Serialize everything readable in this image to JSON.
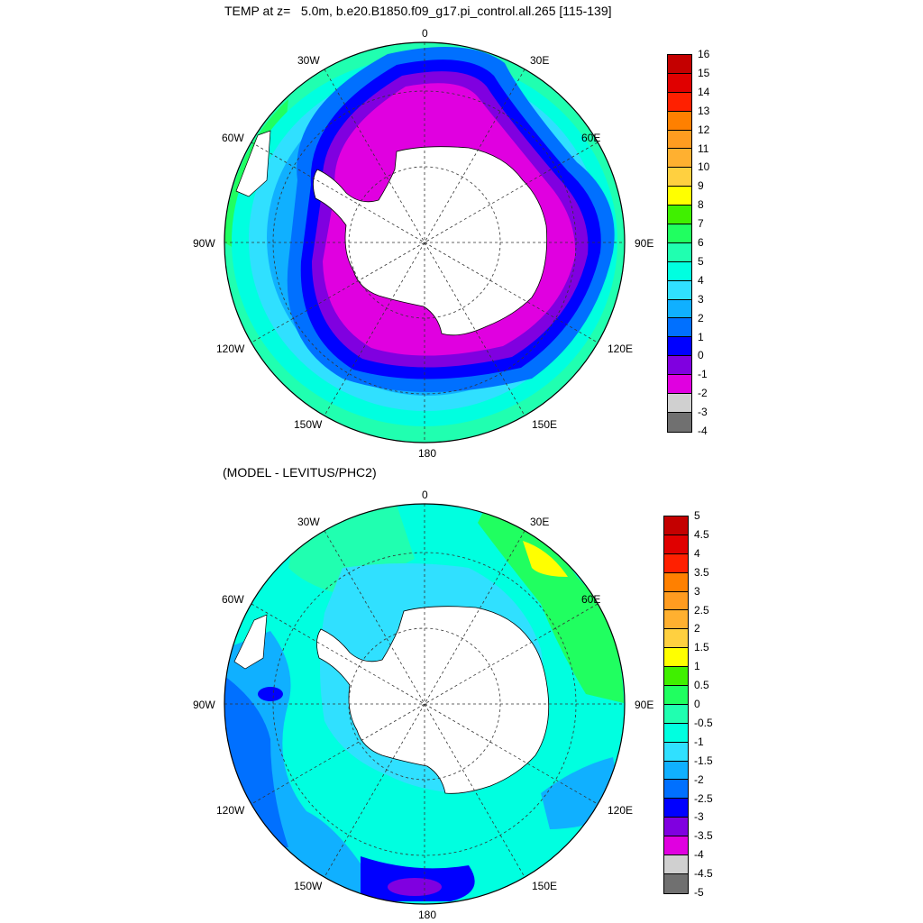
{
  "maps": [
    {
      "title": "TEMP at z=   5.0m, b.e20.B1850.f09_g17.pi_control.all.265 [115-139]",
      "lon_labels": {
        "n": "0",
        "ne": "30E",
        "ene": "60E",
        "e": "90E",
        "ese": "120E",
        "sse": "150E",
        "s": "180",
        "ssw": "150W",
        "wsw": "120W",
        "w": "90W",
        "wnw": "60W",
        "nnw": "30W"
      },
      "colorbar": {
        "labels": [
          "16",
          "15",
          "14",
          "13",
          "12",
          "11",
          "10",
          "9",
          "8",
          "7",
          "6",
          "5",
          "4",
          "3",
          "2",
          "1",
          "0",
          "-1",
          "-2",
          "-3",
          "-4"
        ],
        "colors": [
          "#c40000",
          "#e00000",
          "#ff2000",
          "#ff8000",
          "#ff9c20",
          "#ffb030",
          "#ffd040",
          "#ffff00",
          "#40f000",
          "#20ff60",
          "#20ffb0",
          "#00ffe0",
          "#30e0ff",
          "#10b0ff",
          "#0070ff",
          "#0000ff",
          "#8000e0",
          "#e000e0",
          "#d0d0d0",
          "#707070"
        ]
      }
    },
    {
      "title": "(MODEL - LEVITUS/PHC2)",
      "lon_labels": {
        "n": "0",
        "ne": "30E",
        "ene": "60E",
        "e": "90E",
        "ese": "120E",
        "sse": "150E",
        "s": "180",
        "ssw": "150W",
        "wsw": "120W",
        "w": "90W",
        "wnw": "60W",
        "nnw": "30W"
      },
      "colorbar": {
        "labels": [
          "5",
          "4.5",
          "4",
          "3.5",
          "3",
          "2.5",
          "2",
          "1.5",
          "1",
          "0.5",
          "0",
          "-0.5",
          "-1",
          "-1.5",
          "-2",
          "-2.5",
          "-3",
          "-3.5",
          "-4",
          "-4.5",
          "-5"
        ],
        "colors": [
          "#c40000",
          "#e00000",
          "#ff2000",
          "#ff8000",
          "#ff9c20",
          "#ffb030",
          "#ffd040",
          "#ffff00",
          "#40f000",
          "#20ff60",
          "#20ffb0",
          "#00ffe0",
          "#30e0ff",
          "#10b0ff",
          "#0070ff",
          "#0000ff",
          "#8000e0",
          "#e000e0",
          "#d0d0d0",
          "#707070"
        ]
      }
    }
  ]
}
